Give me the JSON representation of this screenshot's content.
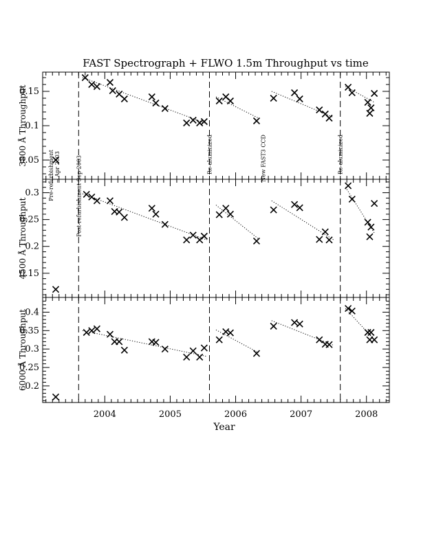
{
  "chart_data": {
    "type": "scatter",
    "title": "FAST Spectrograph + FLWO 1.5m Throughput vs time",
    "xlabel": "Year",
    "xlim": [
      2003.05,
      2008.35
    ],
    "x_ticks": [
      2004,
      2005,
      2006,
      2007,
      2008
    ],
    "x_tick_labels": [
      "2004",
      "2005",
      "2006",
      "2007",
      "2008"
    ],
    "events": [
      {
        "x": 2003.6,
        "label": "Post-refurbishment Sep 2003"
      },
      {
        "x": 2005.6,
        "label": "Re-aluminized"
      },
      {
        "x": 2007.6,
        "label": "Re-aluminized"
      }
    ],
    "new_ccd": {
      "x": 2006.42,
      "label": "New FAST3 CCD"
    },
    "pre_refurb": {
      "x": 2003.28,
      "label": "Pre-refurbishment",
      "label2": "~ Apr 2003"
    },
    "panels": [
      {
        "ylabel": "3800 Å Throughput",
        "ylim": [
          0.022,
          0.178
        ],
        "y_ticks": [
          0.05,
          0.1,
          0.15
        ],
        "y_tick_labels": [
          "0.05",
          "0.1",
          "0.15"
        ],
        "points": [
          [
            2003.25,
            0.05
          ],
          [
            2003.7,
            0.17
          ],
          [
            2003.8,
            0.16
          ],
          [
            2003.88,
            0.157
          ],
          [
            2004.08,
            0.163
          ],
          [
            2004.12,
            0.151
          ],
          [
            2004.22,
            0.146
          ],
          [
            2004.3,
            0.139
          ],
          [
            2004.72,
            0.142
          ],
          [
            2004.78,
            0.133
          ],
          [
            2004.92,
            0.125
          ],
          [
            2005.25,
            0.104
          ],
          [
            2005.35,
            0.108
          ],
          [
            2005.45,
            0.104
          ],
          [
            2005.52,
            0.106
          ],
          [
            2005.75,
            0.136
          ],
          [
            2005.85,
            0.142
          ],
          [
            2005.92,
            0.136
          ],
          [
            2006.32,
            0.107
          ],
          [
            2006.58,
            0.14
          ],
          [
            2006.9,
            0.148
          ],
          [
            2006.98,
            0.139
          ],
          [
            2007.28,
            0.123
          ],
          [
            2007.37,
            0.117
          ],
          [
            2007.43,
            0.111
          ],
          [
            2007.72,
            0.156
          ],
          [
            2007.78,
            0.148
          ],
          [
            2008.02,
            0.134
          ],
          [
            2008.05,
            0.118
          ],
          [
            2008.07,
            0.126
          ],
          [
            2008.12,
            0.147
          ]
        ],
        "trend_lines": [
          [
            [
              2003.66,
              0.17
            ],
            [
              2005.56,
              0.103
            ]
          ],
          [
            [
              2005.7,
              0.142
            ],
            [
              2006.35,
              0.111
            ]
          ],
          [
            [
              2006.55,
              0.15
            ],
            [
              2007.5,
              0.112
            ]
          ],
          [
            [
              2007.68,
              0.157
            ],
            [
              2008.12,
              0.134
            ]
          ]
        ]
      },
      {
        "ylabel": "4500 Å Throughput",
        "ylim": [
          0.105,
          0.325
        ],
        "y_ticks": [
          0.15,
          0.2,
          0.25,
          0.3
        ],
        "y_tick_labels": [
          "0.15",
          "0.2",
          "0.25",
          "0.3"
        ],
        "points": [
          [
            2003.25,
            0.12
          ],
          [
            2003.72,
            0.297
          ],
          [
            2003.8,
            0.292
          ],
          [
            2003.88,
            0.285
          ],
          [
            2004.08,
            0.285
          ],
          [
            2004.15,
            0.265
          ],
          [
            2004.22,
            0.264
          ],
          [
            2004.3,
            0.254
          ],
          [
            2004.72,
            0.271
          ],
          [
            2004.78,
            0.26
          ],
          [
            2004.92,
            0.241
          ],
          [
            2005.25,
            0.212
          ],
          [
            2005.35,
            0.221
          ],
          [
            2005.45,
            0.212
          ],
          [
            2005.52,
            0.219
          ],
          [
            2005.75,
            0.259
          ],
          [
            2005.85,
            0.271
          ],
          [
            2005.92,
            0.26
          ],
          [
            2006.32,
            0.21
          ],
          [
            2006.58,
            0.268
          ],
          [
            2006.9,
            0.278
          ],
          [
            2006.98,
            0.272
          ],
          [
            2007.28,
            0.213
          ],
          [
            2007.37,
            0.227
          ],
          [
            2007.43,
            0.212
          ],
          [
            2007.72,
            0.313
          ],
          [
            2007.78,
            0.288
          ],
          [
            2008.02,
            0.245
          ],
          [
            2008.05,
            0.218
          ],
          [
            2008.07,
            0.236
          ],
          [
            2008.12,
            0.28
          ]
        ],
        "trend_lines": [
          [
            [
              2003.66,
              0.298
            ],
            [
              2005.56,
              0.212
            ]
          ],
          [
            [
              2005.7,
              0.277
            ],
            [
              2006.35,
              0.214
            ]
          ],
          [
            [
              2006.55,
              0.285
            ],
            [
              2007.5,
              0.212
            ]
          ],
          [
            [
              2007.68,
              0.31
            ],
            [
              2008.12,
              0.225
            ]
          ]
        ]
      },
      {
        "ylabel": "6000 Å Throughput",
        "ylim": [
          0.155,
          0.44
        ],
        "y_ticks": [
          0.2,
          0.25,
          0.3,
          0.35,
          0.4
        ],
        "y_tick_labels": [
          "0.2",
          "0.25",
          "0.3",
          "0.35",
          "0.4"
        ],
        "points": [
          [
            2003.25,
            0.17
          ],
          [
            2003.72,
            0.345
          ],
          [
            2003.8,
            0.35
          ],
          [
            2003.88,
            0.355
          ],
          [
            2004.08,
            0.34
          ],
          [
            2004.15,
            0.32
          ],
          [
            2004.22,
            0.32
          ],
          [
            2004.3,
            0.297
          ],
          [
            2004.72,
            0.32
          ],
          [
            2004.78,
            0.318
          ],
          [
            2004.92,
            0.3
          ],
          [
            2005.25,
            0.278
          ],
          [
            2005.35,
            0.295
          ],
          [
            2005.45,
            0.278
          ],
          [
            2005.52,
            0.303
          ],
          [
            2005.75,
            0.325
          ],
          [
            2005.85,
            0.347
          ],
          [
            2005.92,
            0.344
          ],
          [
            2006.32,
            0.288
          ],
          [
            2006.58,
            0.362
          ],
          [
            2006.9,
            0.372
          ],
          [
            2006.98,
            0.368
          ],
          [
            2007.28,
            0.325
          ],
          [
            2007.37,
            0.313
          ],
          [
            2007.43,
            0.312
          ],
          [
            2007.72,
            0.41
          ],
          [
            2007.78,
            0.403
          ],
          [
            2008.02,
            0.345
          ],
          [
            2008.05,
            0.325
          ],
          [
            2008.07,
            0.345
          ],
          [
            2008.12,
            0.325
          ]
        ],
        "trend_lines": [
          [
            [
              2003.66,
              0.35
            ],
            [
              2005.56,
              0.28
            ]
          ],
          [
            [
              2005.7,
              0.352
            ],
            [
              2006.35,
              0.29
            ]
          ],
          [
            [
              2006.55,
              0.377
            ],
            [
              2007.5,
              0.31
            ]
          ],
          [
            [
              2007.68,
              0.41
            ],
            [
              2008.12,
              0.325
            ]
          ]
        ]
      }
    ]
  }
}
